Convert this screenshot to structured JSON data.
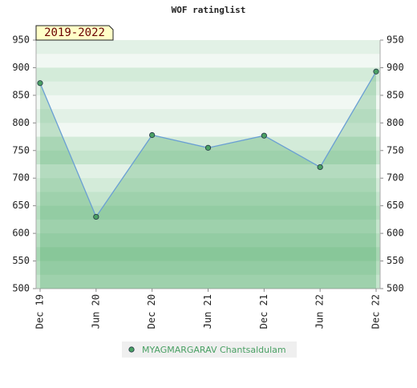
{
  "chart_data": {
    "type": "line",
    "title": "WOF ratinglist",
    "annotation": "2019-2022",
    "categories": [
      "Dec 19",
      "Jun 20",
      "Dec 20",
      "Jun 21",
      "Dec 21",
      "Jun 22",
      "Dec 22"
    ],
    "series": [
      {
        "name": "MYAGMARGARAV Chantsaldulam",
        "color": "#6a9fd4",
        "marker_color": "#4aa064",
        "values": [
          872,
          630,
          778,
          755,
          777,
          720,
          893
        ]
      }
    ],
    "ylim": [
      500,
      950
    ],
    "yticks": [
      500,
      550,
      600,
      650,
      700,
      750,
      800,
      850,
      900,
      950
    ],
    "right_axis": true,
    "area": true
  }
}
